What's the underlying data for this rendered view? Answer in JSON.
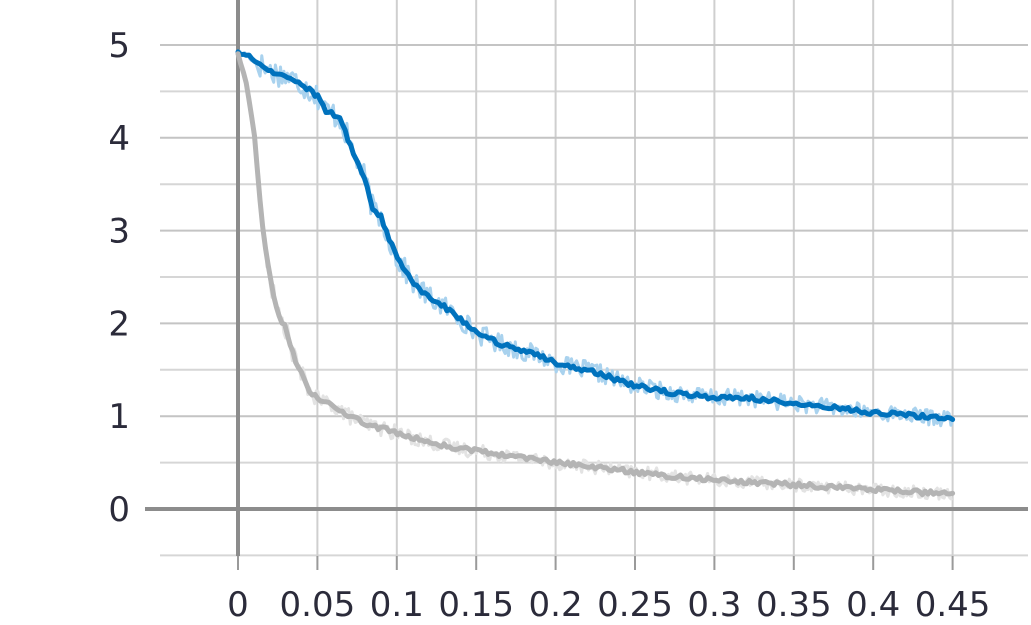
{
  "chart_data": {
    "type": "line",
    "title": "",
    "xlabel": "",
    "ylabel": "",
    "xlim": [
      -0.05,
      0.5
    ],
    "ylim": [
      -0.5,
      5.5
    ],
    "grid": true,
    "x_ticks": [
      0,
      0.05,
      0.1,
      0.15,
      0.2,
      0.25,
      0.3,
      0.35,
      0.4,
      0.45
    ],
    "x_tick_labels": [
      "0",
      "0.05",
      "0.1",
      "0.15",
      "0.2",
      "0.25",
      "0.3",
      "0.35",
      "0.4",
      "0.45"
    ],
    "y_ticks": [
      0,
      1,
      2,
      3,
      4,
      5
    ],
    "y_tick_labels": [
      "0",
      "1",
      "2",
      "3",
      "4",
      "5"
    ],
    "series": [
      {
        "color": "#0072bd",
        "raw_color": "#a9d2ee",
        "x": [
          0,
          0.005,
          0.01,
          0.02,
          0.03,
          0.04,
          0.05,
          0.055,
          0.06,
          0.065,
          0.07,
          0.08,
          0.085,
          0.09,
          0.1,
          0.11,
          0.12,
          0.13,
          0.14,
          0.15,
          0.16,
          0.17,
          0.18,
          0.19,
          0.2,
          0.21,
          0.22,
          0.23,
          0.24,
          0.25,
          0.26,
          0.27,
          0.28,
          0.29,
          0.3,
          0.32,
          0.34,
          0.36,
          0.38,
          0.4,
          0.42,
          0.44,
          0.45
        ],
        "values": [
          4.92,
          4.9,
          4.83,
          4.72,
          4.67,
          4.58,
          4.45,
          4.3,
          4.26,
          4.19,
          3.95,
          3.55,
          3.22,
          3.15,
          2.7,
          2.45,
          2.28,
          2.18,
          2.05,
          1.9,
          1.82,
          1.75,
          1.7,
          1.65,
          1.58,
          1.52,
          1.5,
          1.45,
          1.38,
          1.33,
          1.3,
          1.26,
          1.24,
          1.22,
          1.2,
          1.2,
          1.16,
          1.12,
          1.08,
          1.04,
          1.02,
          0.98,
          0.98
        ]
      },
      {
        "color": "#b4b4b4",
        "raw_color": "#e3e3e3",
        "x": [
          0,
          0.005,
          0.01,
          0.015,
          0.02,
          0.025,
          0.03,
          0.035,
          0.04,
          0.045,
          0.05,
          0.06,
          0.07,
          0.08,
          0.09,
          0.1,
          0.12,
          0.14,
          0.16,
          0.18,
          0.2,
          0.22,
          0.24,
          0.26,
          0.28,
          0.3,
          0.32,
          0.34,
          0.36,
          0.38,
          0.4,
          0.42,
          0.44,
          0.45
        ],
        "values": [
          4.9,
          4.6,
          4.1,
          3.1,
          2.5,
          2.1,
          1.95,
          1.65,
          1.45,
          1.28,
          1.18,
          1.12,
          1.0,
          0.92,
          0.87,
          0.82,
          0.72,
          0.65,
          0.6,
          0.55,
          0.5,
          0.46,
          0.42,
          0.38,
          0.34,
          0.31,
          0.29,
          0.27,
          0.25,
          0.23,
          0.21,
          0.19,
          0.17,
          0.17
        ]
      }
    ]
  }
}
